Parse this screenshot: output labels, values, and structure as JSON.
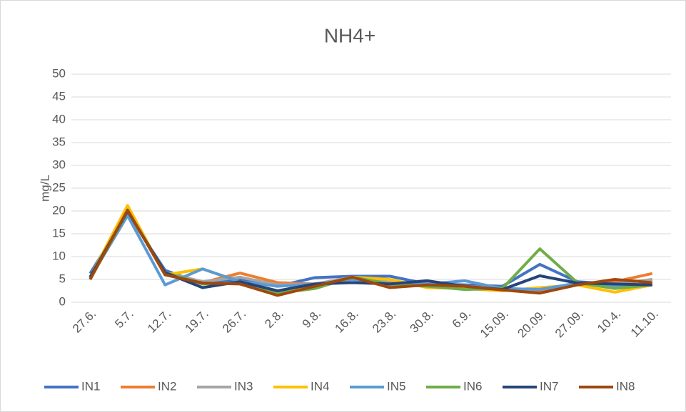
{
  "chart_data": {
    "type": "line",
    "title": "NH4+",
    "y_label": "mg/L",
    "categories": [
      "27.6.",
      "5.7.",
      "12.7.",
      "19.7.",
      "26.7.",
      "2.8.",
      "9.8.",
      "16.8.",
      "23.8.",
      "30.8.",
      "6.9.",
      "15.09.",
      "20.09.",
      "27.09.",
      "10.4.",
      "11.10."
    ],
    "series": [
      {
        "name": "IN1",
        "color": "#4472c4",
        "values": [
          6.3,
          19.5,
          7,
          4,
          5,
          3.5,
          5.4,
          5.7,
          5.7,
          4,
          3.8,
          3.5,
          8.3,
          4.5,
          4,
          3.8
        ]
      },
      {
        "name": "IN2",
        "color": "#ed7d31",
        "values": [
          5,
          20,
          6.5,
          4.3,
          6.4,
          4.3,
          4,
          5.4,
          3.5,
          4,
          3.5,
          3,
          2.5,
          4,
          4.5,
          6.3
        ]
      },
      {
        "name": "IN3",
        "color": "#a5a5a5",
        "values": [
          5.5,
          19.8,
          6.5,
          4.5,
          5.5,
          3.8,
          4,
          5.5,
          4.5,
          4,
          3.5,
          3,
          2.8,
          4,
          4,
          5
        ]
      },
      {
        "name": "IN4",
        "color": "#ffc000",
        "values": [
          5.5,
          21.2,
          6,
          7.3,
          4.5,
          2.5,
          3.5,
          5.5,
          5,
          3.2,
          3,
          2.5,
          3.2,
          3.8,
          2.2,
          3.8
        ]
      },
      {
        "name": "IN5",
        "color": "#5b9bd5",
        "values": [
          5.3,
          19,
          3.8,
          7.3,
          4.5,
          3.5,
          4,
          5,
          4,
          4,
          4.7,
          3,
          2.8,
          4.2,
          3.5,
          4
        ]
      },
      {
        "name": "IN6",
        "color": "#70ad47",
        "values": [
          5,
          20,
          6.5,
          4,
          4.2,
          2,
          3,
          5.5,
          4,
          3.5,
          2.8,
          3,
          11.7,
          4.3,
          3,
          3.8
        ]
      },
      {
        "name": "IN7",
        "color": "#264478",
        "values": [
          5.5,
          20,
          6.5,
          3.2,
          4.5,
          2.5,
          4,
          4.3,
          4,
          4.7,
          3.5,
          2.8,
          5.8,
          4.2,
          4,
          3.8
        ]
      },
      {
        "name": "IN8",
        "color": "#9e480e",
        "values": [
          5,
          20.2,
          6,
          4.2,
          4,
          1.5,
          3.5,
          5.5,
          3.2,
          3.8,
          3.5,
          2.7,
          2,
          3.8,
          5,
          4.3
        ]
      }
    ],
    "ylim": [
      0,
      50
    ],
    "yticks": [
      0,
      5,
      10,
      15,
      20,
      25,
      30,
      35,
      40,
      45,
      50
    ],
    "grid": true,
    "legend": "bottom"
  }
}
